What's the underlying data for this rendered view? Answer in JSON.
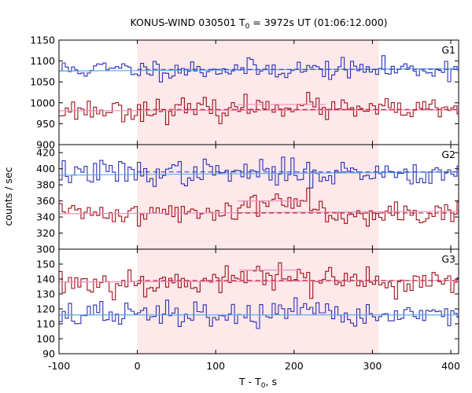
{
  "chart_data": {
    "type": "line",
    "title": {
      "main": "KONUS-WIND 030501 T",
      "sub": "0",
      "rest": " = 3972s UT (01:06:12.000)"
    },
    "xlabel": {
      "main": "T - T",
      "sub": "0",
      "rest": ", s"
    },
    "ylabel": "counts / sec",
    "xlim": [
      -100,
      410
    ],
    "xticks": [
      -100,
      0,
      100,
      200,
      300,
      400
    ],
    "highlight_interval": [
      0,
      308
    ],
    "bin_width": 4,
    "colors": {
      "blue": "#2b2fb3",
      "red": "#a01018",
      "cyan_fit": "#5aaee8",
      "pink_fit": "#ee8fc0",
      "dashed": "#a01018",
      "shade": "#fde8ea"
    },
    "panels": [
      {
        "label": "G1",
        "ylim": [
          900,
          1150
        ],
        "yticks": [
          900,
          950,
          1000,
          1050,
          1100,
          1150
        ],
        "series": [
          {
            "color": "blue",
            "mean": 1080,
            "noise": 12,
            "seed": 11,
            "bumps": []
          },
          {
            "color": "red",
            "mean": 983,
            "noise": 13,
            "seed": 23,
            "bumps": [
              [
                130,
                240,
                12
              ]
            ]
          }
        ],
        "fit_lines": [
          {
            "color": "cyan_fit",
            "x": [
              -100,
              410
            ],
            "y": [
              1076,
              1082
            ]
          },
          {
            "color": "pink_fit",
            "x": [
              -100,
              410
            ],
            "y": [
              981,
              983
            ]
          },
          {
            "color": "pink_fit",
            "x": [
              128,
              240
            ],
            "y": [
              996,
              996
            ]
          }
        ],
        "dashed_lines": [
          {
            "color": "blue",
            "x": [
              0,
              410
            ],
            "y": [
              1080,
              1080
            ]
          },
          {
            "color": "dashed",
            "x": [
              0,
              410
            ],
            "y": [
              984,
              984
            ]
          }
        ]
      },
      {
        "label": "G2",
        "ylim": [
          300,
          430
        ],
        "yticks": [
          300,
          320,
          340,
          360,
          380,
          400,
          420
        ],
        "series": [
          {
            "color": "blue",
            "mean": 395,
            "noise": 8,
            "seed": 37,
            "bumps": []
          },
          {
            "color": "red",
            "mean": 345,
            "noise": 7,
            "seed": 41,
            "bumps": [
              [
                130,
                240,
                18
              ]
            ]
          }
        ],
        "fit_lines": [
          {
            "color": "cyan_fit",
            "x": [
              -100,
              410
            ],
            "y": [
              392,
              396
            ]
          },
          {
            "color": "pink_fit",
            "x": [
              -100,
              410
            ],
            "y": [
              344,
              347
            ]
          },
          {
            "color": "pink_fit",
            "x": [
              128,
              208
            ],
            "y": [
              360,
              360
            ]
          }
        ],
        "dashed_lines": [
          {
            "color": "blue",
            "x": [
              0,
              410
            ],
            "y": [
              396,
              396
            ]
          },
          {
            "color": "dashed",
            "x": [
              128,
              410
            ],
            "y": [
              345,
              345
            ]
          }
        ]
      },
      {
        "label": "G3",
        "ylim": [
          90,
          160
        ],
        "yticks": [
          90,
          100,
          110,
          120,
          130,
          140,
          150
        ],
        "series": [
          {
            "color": "red",
            "mean": 138,
            "noise": 5,
            "seed": 53,
            "bumps": [
              [
                130,
                210,
                8
              ]
            ]
          },
          {
            "color": "blue",
            "mean": 116,
            "noise": 4.5,
            "seed": 67,
            "bumps": []
          }
        ],
        "fit_lines": [
          {
            "color": "pink_fit",
            "x": [
              -100,
              410
            ],
            "y": [
              138,
              139
            ]
          },
          {
            "color": "cyan_fit",
            "x": [
              -100,
              410
            ],
            "y": [
              116,
              116
            ]
          },
          {
            "color": "pink_fit",
            "x": [
              130,
              210
            ],
            "y": [
              146,
              146
            ]
          }
        ],
        "dashed_lines": [
          {
            "color": "dashed",
            "x": [
              0,
              410
            ],
            "y": [
              139,
              139
            ]
          }
        ]
      }
    ]
  }
}
